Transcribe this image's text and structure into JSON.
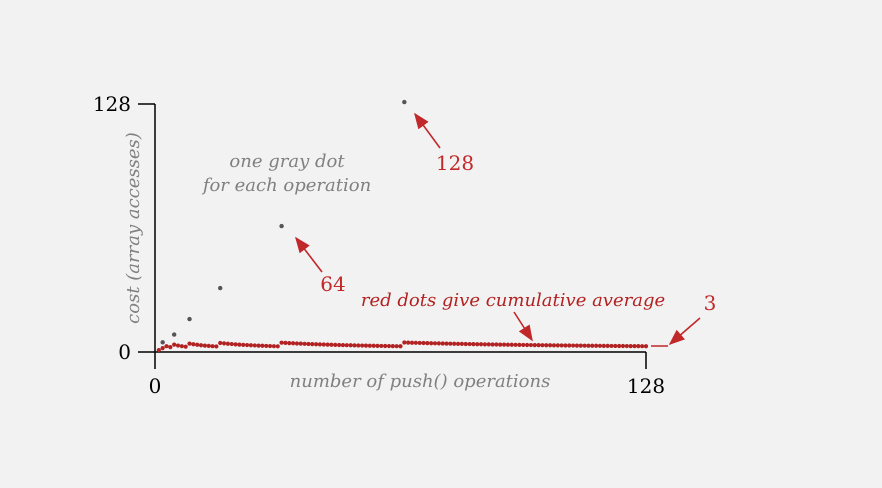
{
  "chart_data": {
    "type": "scatter",
    "xlabel": "number of push() operations",
    "ylabel": "cost (array accesses)",
    "xlim": [
      0,
      128
    ],
    "ylim": [
      0,
      128
    ],
    "x_ticks": [
      "0",
      "128"
    ],
    "y_ticks": [
      "0",
      "128"
    ],
    "series": [
      {
        "name": "one gray dot for each operation",
        "color": "#555555",
        "points": [
          [
            2,
            5
          ],
          [
            5,
            9
          ],
          [
            9,
            17
          ],
          [
            17,
            33
          ],
          [
            33,
            65
          ],
          [
            65,
            129
          ]
        ]
      },
      {
        "name": "red dots give cumulative average",
        "color": "#b22222",
        "x_start": 1,
        "x_end": 128,
        "approx_value": 3
      }
    ],
    "annotations": [
      {
        "text": "one gray dot",
        "target": "gray dots"
      },
      {
        "text": "for each operation",
        "target": "gray dots"
      },
      {
        "text": "red dots give cumulative average",
        "target": "red dots"
      },
      {
        "text": "128",
        "target": [
          65,
          129
        ]
      },
      {
        "text": "64",
        "target": [
          33,
          65
        ]
      },
      {
        "text": "3",
        "target": "average level"
      }
    ],
    "colors": {
      "gray": "#555555",
      "red": "#b22222",
      "axis": "#000000",
      "label_gray": "#808080"
    }
  }
}
